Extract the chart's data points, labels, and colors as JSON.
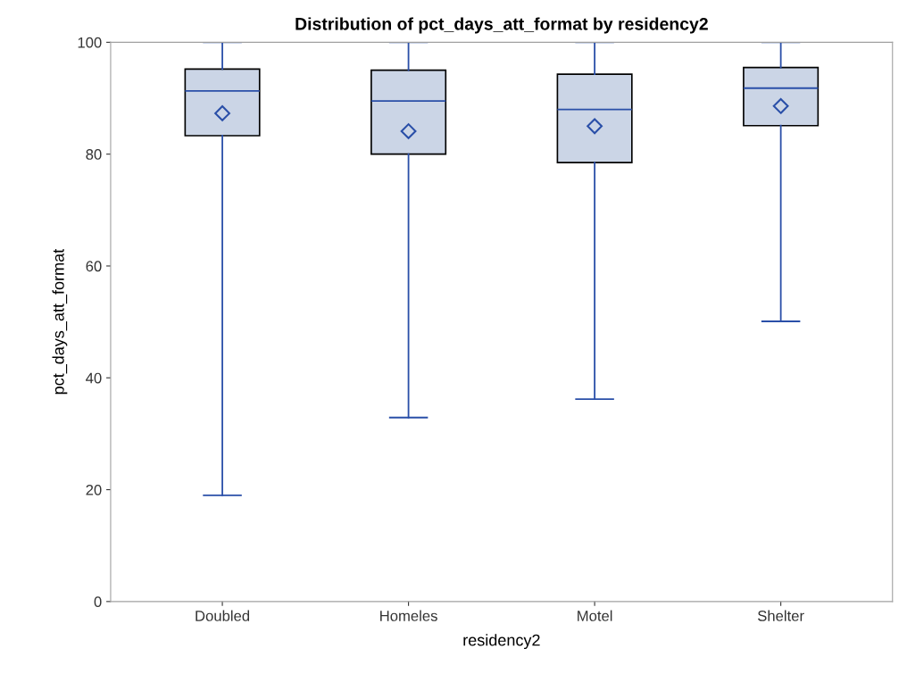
{
  "chart_data": {
    "type": "box",
    "title": "Distribution of pct_days_att_format by residency2",
    "xlabel": "residency2",
    "ylabel": "pct_days_att_format",
    "categories": [
      "Doubled",
      "Homeles",
      "Motel",
      "Shelter"
    ],
    "series": [
      {
        "color": "#cbd5e6",
        "boxes": [
          {
            "low": 19.0,
            "q1": 83.3,
            "median": 91.3,
            "q3": 95.2,
            "high": 100,
            "mean": 87.3
          },
          {
            "low": 32.9,
            "q1": 80.0,
            "median": 89.5,
            "q3": 95.0,
            "high": 100,
            "mean": 84.1
          },
          {
            "low": 36.2,
            "q1": 78.5,
            "median": 88.0,
            "q3": 94.3,
            "high": 100,
            "mean": 85.0
          },
          {
            "low": 50.1,
            "q1": 85.1,
            "median": 91.8,
            "q3": 95.5,
            "high": 100,
            "mean": 88.6
          }
        ]
      }
    ],
    "ylim": [
      0,
      100
    ],
    "yticks": [
      0,
      20,
      40,
      60,
      80,
      100
    ],
    "grid": false
  }
}
